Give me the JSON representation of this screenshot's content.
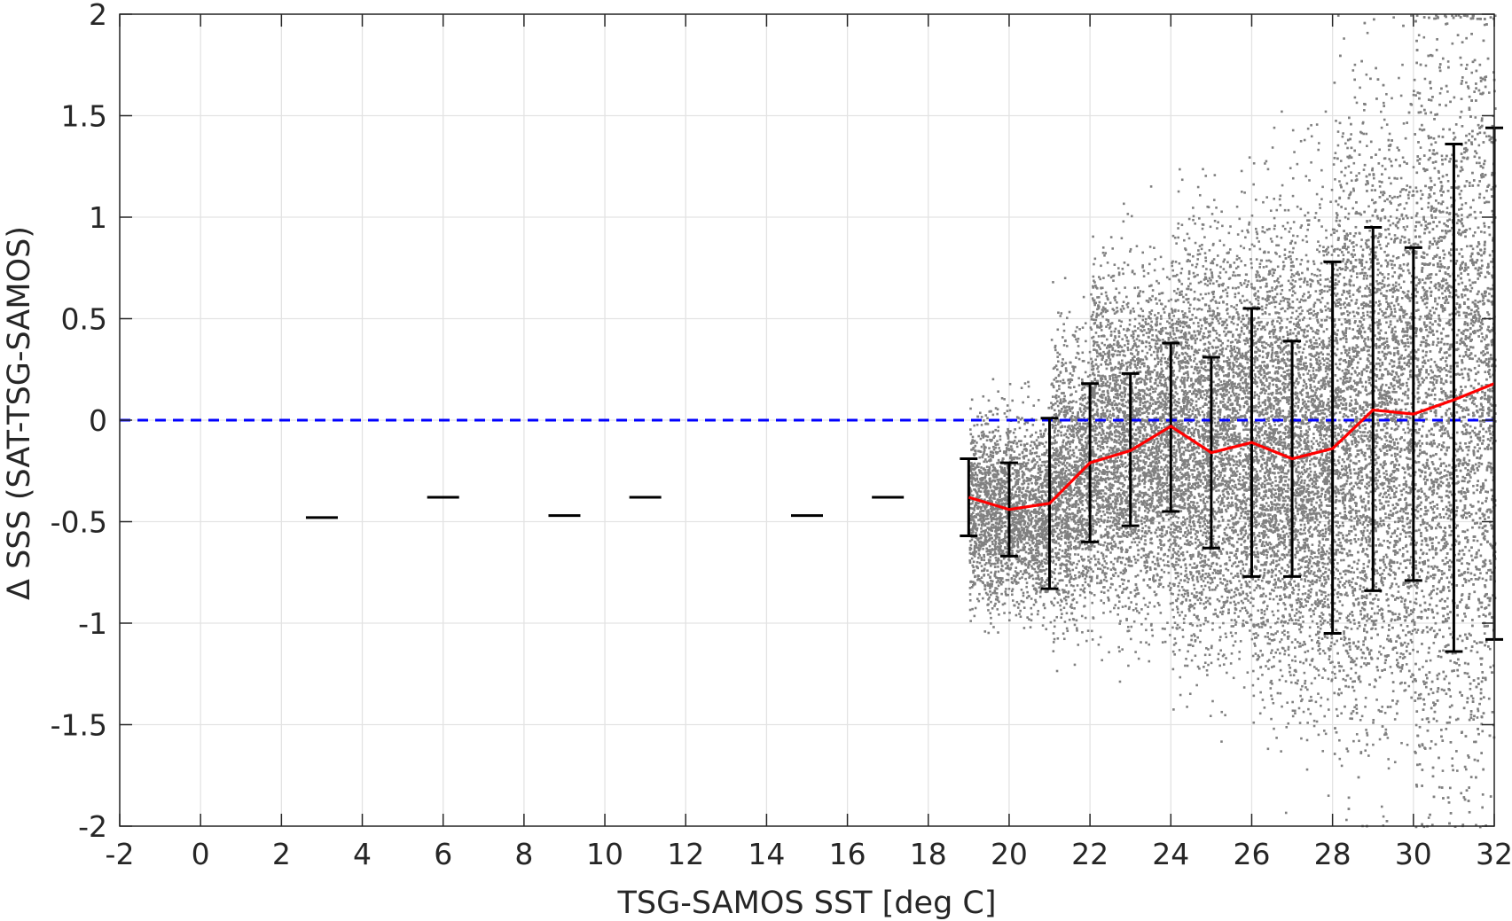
{
  "chart_data": {
    "type": "scatter",
    "title": "",
    "xlabel": "TSG-SAMOS SST [deg C]",
    "ylabel": "Δ SSS (SAT-TSG-SAMOS)",
    "xlim": [
      -2,
      32
    ],
    "ylim": [
      -2,
      2
    ],
    "xticks": [
      -2,
      0,
      2,
      4,
      6,
      8,
      10,
      12,
      14,
      16,
      18,
      20,
      22,
      24,
      26,
      28,
      30,
      32
    ],
    "yticks": [
      -2,
      -1.5,
      -1,
      -0.5,
      0,
      0.5,
      1,
      1.5,
      2
    ],
    "xtick_labels": [
      "-2",
      "0",
      "2",
      "4",
      "6",
      "8",
      "10",
      "12",
      "14",
      "16",
      "18",
      "20",
      "22",
      "24",
      "26",
      "28",
      "30",
      "32"
    ],
    "ytick_labels": [
      "-2",
      "-1.5",
      "-1",
      "-0.5",
      "0",
      "0.5",
      "1",
      "1.5",
      "2"
    ],
    "grid": true,
    "reference_line": {
      "y": 0,
      "color": "#0000ff",
      "style": "dashed"
    },
    "scatter_color": "#808080",
    "scatter_density": [
      {
        "x_range": [
          19.0,
          21.0
        ],
        "y_center": -0.45,
        "y_spread": 0.3
      },
      {
        "x_range": [
          21.0,
          22.0
        ],
        "y_center": -0.3,
        "y_spread": 0.45
      },
      {
        "x_range": [
          22.0,
          24.0
        ],
        "y_center": -0.1,
        "y_spread": 0.55
      },
      {
        "x_range": [
          24.0,
          26.0
        ],
        "y_center": -0.1,
        "y_spread": 0.65
      },
      {
        "x_range": [
          26.0,
          28.0
        ],
        "y_center": -0.15,
        "y_spread": 0.75
      },
      {
        "x_range": [
          28.0,
          30.0
        ],
        "y_center": 0.0,
        "y_spread": 0.95
      },
      {
        "x_range": [
          30.0,
          32.0
        ],
        "y_center": 0.1,
        "y_spread": 1.2
      }
    ],
    "mean_line": {
      "color": "#ff0000",
      "x": [
        19,
        20,
        21,
        22,
        23,
        24,
        25,
        26,
        27,
        28,
        29,
        30,
        31,
        32
      ],
      "y": [
        -0.38,
        -0.44,
        -0.41,
        -0.21,
        -0.15,
        -0.03,
        -0.16,
        -0.11,
        -0.19,
        -0.14,
        0.05,
        0.03,
        0.1,
        0.18
      ]
    },
    "error_bars": {
      "color": "#000000",
      "bins": [
        {
          "x": 3,
          "low": -0.48,
          "high": -0.48
        },
        {
          "x": 6,
          "low": -0.38,
          "high": -0.38
        },
        {
          "x": 9,
          "low": -0.47,
          "high": -0.47
        },
        {
          "x": 11,
          "low": -0.38,
          "high": -0.38
        },
        {
          "x": 15,
          "low": -0.47,
          "high": -0.47
        },
        {
          "x": 17,
          "low": -0.38,
          "high": -0.38
        },
        {
          "x": 19,
          "low": -0.57,
          "high": -0.19
        },
        {
          "x": 20,
          "low": -0.67,
          "high": -0.21
        },
        {
          "x": 21,
          "low": -0.83,
          "high": 0.01
        },
        {
          "x": 22,
          "low": -0.6,
          "high": 0.18
        },
        {
          "x": 23,
          "low": -0.52,
          "high": 0.23
        },
        {
          "x": 24,
          "low": -0.45,
          "high": 0.38
        },
        {
          "x": 25,
          "low": -0.63,
          "high": 0.31
        },
        {
          "x": 26,
          "low": -0.77,
          "high": 0.55
        },
        {
          "x": 27,
          "low": -0.77,
          "high": 0.39
        },
        {
          "x": 28,
          "low": -1.05,
          "high": 0.78
        },
        {
          "x": 29,
          "low": -0.84,
          "high": 0.95
        },
        {
          "x": 30,
          "low": -0.79,
          "high": 0.85
        },
        {
          "x": 31,
          "low": -1.14,
          "high": 1.36
        },
        {
          "x": 32,
          "low": -1.08,
          "high": 1.44
        }
      ]
    }
  }
}
